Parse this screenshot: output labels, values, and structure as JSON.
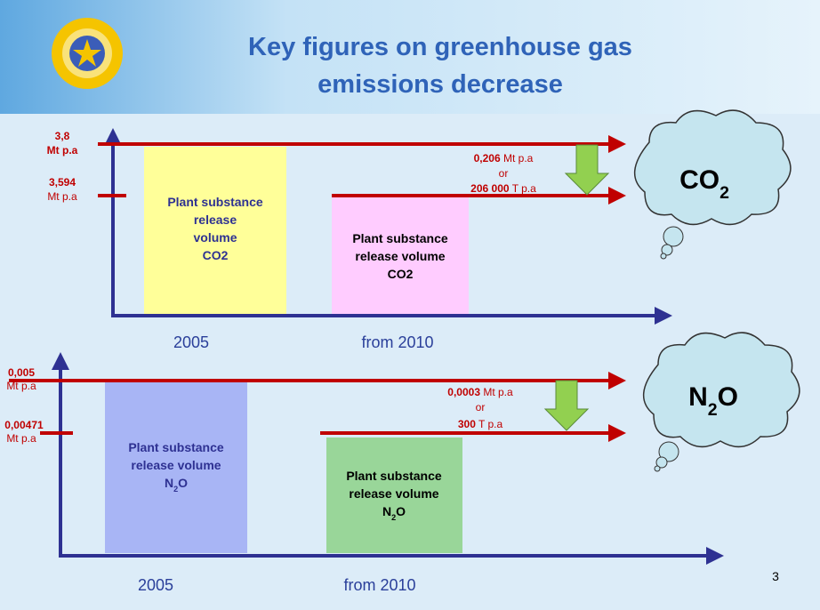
{
  "header": {
    "title_lines": [
      "Key figures on greenhouse gas",
      "emissions decrease"
    ]
  },
  "panels": [
    {
      "levels": [
        {
          "value": "3,8",
          "unit": "Mt p.a"
        },
        {
          "value": "3,594",
          "unit": "Mt p.a"
        }
      ],
      "bars": [
        {
          "lines": [
            "Plant substance",
            "release",
            "volume",
            "CO2"
          ]
        },
        {
          "lines": [
            "Plant substance",
            "release volume",
            "CO2"
          ]
        }
      ],
      "reduction": {
        "amount": "0,206",
        "amount_unit": "Mt p.a",
        "connector": "or",
        "alt": "206 000",
        "alt_unit": "T p.a"
      },
      "gas": [
        "CO",
        "2"
      ],
      "years": [
        "2005",
        "from 2010"
      ]
    },
    {
      "levels": [
        {
          "value": "0,005",
          "unit": "Mt p.a"
        },
        {
          "value": "0,00471",
          "unit": "Mt p.a"
        }
      ],
      "bars": [
        {
          "lines": [
            "Plant substance",
            "release volume",
            [
              "N",
              "2",
              "O"
            ]
          ]
        },
        {
          "lines": [
            "Plant substance",
            "release volume",
            [
              "N",
              "2",
              "O"
            ]
          ]
        }
      ],
      "reduction": {
        "amount": "0,0003",
        "amount_unit": "Mt p.a",
        "connector": "or",
        "alt": "300",
        "alt_unit": "T p.a"
      },
      "gas": [
        "N",
        "2",
        "O"
      ],
      "years": [
        "2005",
        "from 2010"
      ]
    }
  ],
  "page_number": "3"
}
